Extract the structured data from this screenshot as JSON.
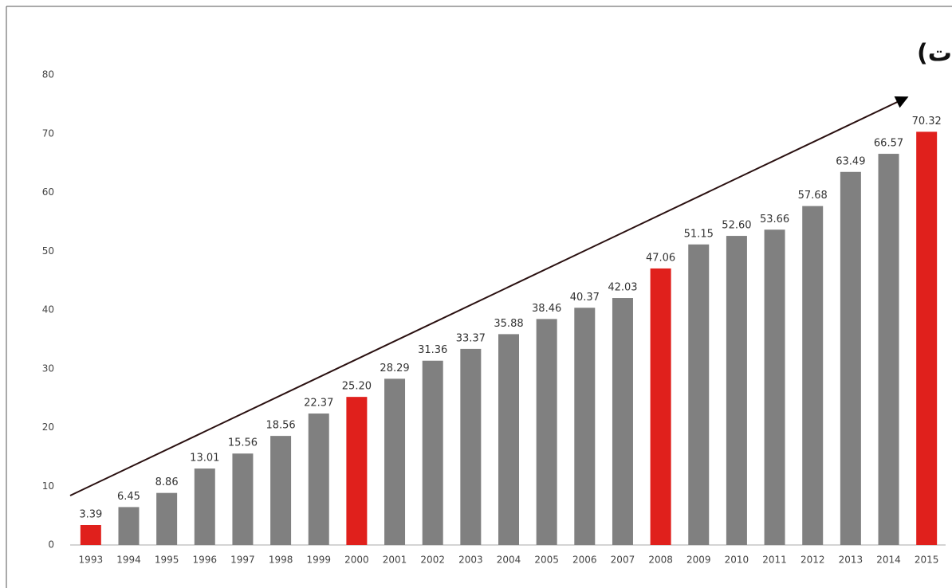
{
  "chart_data": {
    "type": "bar",
    "title": "تطور إجمالي الدين العام (بمليارات الدولارات)",
    "categories": [
      "1993",
      "1994",
      "1995",
      "1996",
      "1997",
      "1998",
      "1999",
      "2000",
      "2001",
      "2002",
      "2003",
      "2004",
      "2005",
      "2006",
      "2007",
      "2008",
      "2009",
      "2010",
      "2011",
      "2012",
      "2013",
      "2014",
      "2015"
    ],
    "values": [
      3.39,
      6.45,
      8.86,
      13.01,
      15.56,
      18.56,
      22.37,
      25.2,
      28.29,
      31.36,
      33.37,
      35.88,
      38.46,
      40.37,
      42.03,
      47.06,
      51.15,
      52.6,
      53.66,
      57.68,
      63.49,
      66.57,
      70.32
    ],
    "value_labels": [
      "3.39",
      "6.45",
      "8.86",
      "13.01",
      "15.56",
      "18.56",
      "22.37",
      "25.20",
      "28.29",
      "31.36",
      "33.37",
      "35.88",
      "38.46",
      "40.37",
      "42.03",
      "47.06",
      "51.15",
      "52.60",
      "53.66",
      "57.68",
      "63.49",
      "66.57",
      "70.32"
    ],
    "colors": [
      "#e0201c",
      "#808080",
      "#808080",
      "#808080",
      "#808080",
      "#808080",
      "#808080",
      "#e0201c",
      "#808080",
      "#808080",
      "#808080",
      "#808080",
      "#808080",
      "#808080",
      "#808080",
      "#e0201c",
      "#808080",
      "#808080",
      "#808080",
      "#808080",
      "#808080",
      "#808080",
      "#e0201c"
    ],
    "ylim": [
      0,
      80
    ],
    "yticks": [
      0,
      10,
      20,
      30,
      40,
      50,
      60,
      70,
      80
    ],
    "grid": false
  }
}
